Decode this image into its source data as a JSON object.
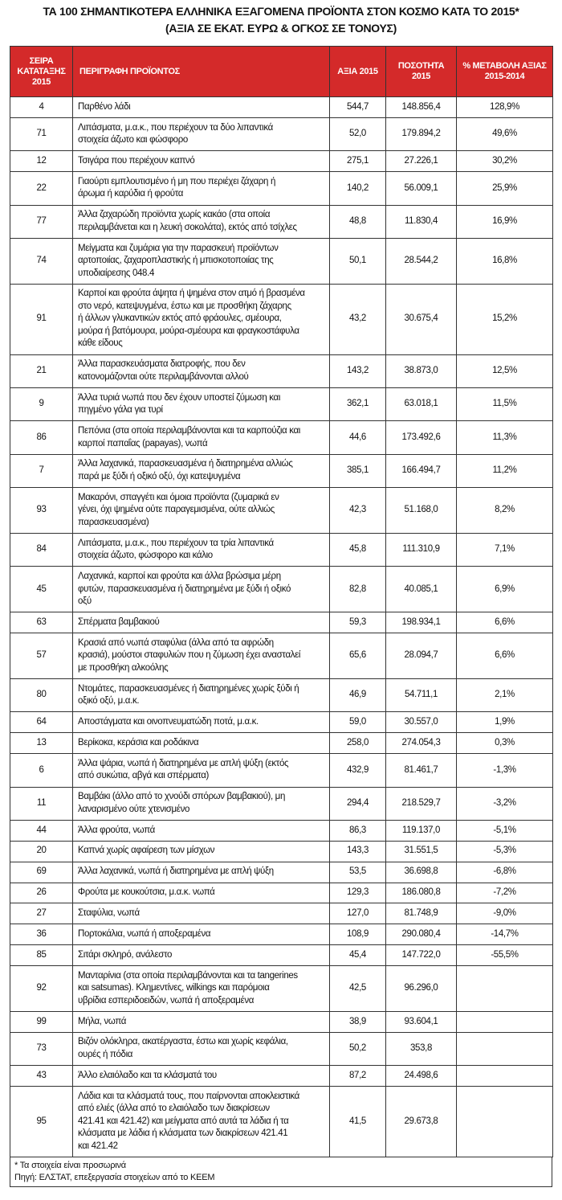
{
  "title": [
    "ΤΑ 100 ΣΗΜΑΝΤΙΚΟΤΕΡΑ ΕΛΛΗΝΙΚΑ ΕΞΑΓΟΜΕΝΑ ΠΡΟΪΟΝΤΑ ΣΤΟΝ ΚΟΣΜΟ ΚΑΤΑ ΤΟ 2015*",
    "(ΑΞΙΑ ΣΕ ΕΚΑΤ. ΕΥΡΩ & ΟΓΚΟΣ ΣΕ ΤΟΝΟΥΣ)"
  ],
  "table": {
    "header": [
      "ΣΕΙΡΑ ΚΑΤΑΤΑΞΗΣ 2015",
      "ΠΕΡΙΓΡΑΦΗ ΠΡΟΪΟΝΤΟΣ",
      "ΑΞΙΑ 2015",
      "ΠΟΣΟΤΗΤΑ 2015",
      "% ΜΕΤΑΒΟΛΗ ΑΞΙΑΣ 2015-2014"
    ],
    "rows": [
      {
        "rank": "4",
        "description": [
          "Παρθένο λάδι"
        ],
        "value": "544,7",
        "quantity": "148.856,4",
        "change": "128,9%"
      },
      {
        "rank": "71",
        "description": [
          "Λιπάσματα, μ.α.κ., που περιέχουν τα δύο λιπαντικά",
          "στοιχεία άζωτο και φώσφορο"
        ],
        "value": "52,0",
        "quantity": "179.894,2",
        "change": "49,6%"
      },
      {
        "rank": "12",
        "description": [
          "Τσιγάρα που περιέχουν καπνό"
        ],
        "value": "275,1",
        "quantity": "27.226,1",
        "change": "30,2%"
      },
      {
        "rank": "22",
        "description": [
          "Γιαούρτι εμπλουτισμένο ή μη που περιέχει ζάχαρη ή",
          "άρωμα ή καρύδια ή φρούτα"
        ],
        "value": "140,2",
        "quantity": "56.009,1",
        "change": "25,9%"
      },
      {
        "rank": "77",
        "description": [
          "Άλλα ζαχαρώδη προϊόντα χωρίς κακάο (στα οποία",
          "περιλαμβάνεται και η λευκή σοκολάτα), εκτός από τσίχλες"
        ],
        "value": "48,8",
        "quantity": "11.830,4",
        "change": "16,9%"
      },
      {
        "rank": "74",
        "description": [
          "Μείγματα και ζυμάρια για την παρασκευή προϊόντων",
          "αρτοποιίας, ζαχαροπλαστικής ή μπισκοτοποιίας της",
          "υποδιαίρεσης 048.4"
        ],
        "value": "50,1",
        "quantity": "28.544,2",
        "change": "16,8%"
      },
      {
        "rank": "91",
        "description": [
          "Καρποί και φρούτα άψητα ή ψημένα στον ατμό ή βρασμένα",
          "στο νερό, κατεψυγμένα, έστω και με προσθήκη ζάχαρης",
          "ή άλλων γλυκαντικών εκτός από φράουλες, σμέουρα,",
          "μούρα ή βατόμουρα, μούρα-σμέουρα και φραγκοστάφυλα",
          "κάθε είδους"
        ],
        "value": "43,2",
        "quantity": "30.675,4",
        "change": "15,2%"
      },
      {
        "rank": "21",
        "description": [
          "Άλλα παρασκευάσματα διατροφής, που δεν",
          "κατονομάζονται ούτε περιλαμβάνονται αλλού"
        ],
        "value": "143,2",
        "quantity": "38.873,0",
        "change": "12,5%"
      },
      {
        "rank": "9",
        "description": [
          "Άλλα τυριά νωπά που δεν έχουν υποστεί ζύμωση και",
          "πηγμένο γάλα για τυρί"
        ],
        "value": "362,1",
        "quantity": "63.018,1",
        "change": "11,5%"
      },
      {
        "rank": "86",
        "description": [
          "Πεπόνια (στα οποία περιλαμβάνονται και τα καρπούζια και",
          "καρποί παπαΐας (papayas), νωπά"
        ],
        "value": "44,6",
        "quantity": "173.492,6",
        "change": "11,3%"
      },
      {
        "rank": "7",
        "description": [
          "Άλλα λαχανικά, παρασκευασμένα ή διατηρημένα αλλιώς",
          "παρά με ξύδι ή οξικό οξύ, όχι κατεψυγμένα"
        ],
        "value": "385,1",
        "quantity": "166.494,7",
        "change": "11,2%"
      },
      {
        "rank": "93",
        "description": [
          "Μακαρόνι, σπαγγέτι και όμοια προϊόντα (ζυμαρικά εν",
          "γένει, όχι ψημένα ούτε παραγεμισμένα, ούτε αλλιώς",
          "παρασκευασμένα)"
        ],
        "value": "42,3",
        "quantity": "51.168,0",
        "change": "8,2%"
      },
      {
        "rank": "84",
        "description": [
          "Λιπάσματα, μ.α.κ., που περιέχουν τα τρία λιπαντικά",
          "στοιχεία άζωτο, φώσφορο και κάλιο"
        ],
        "value": "45,8",
        "quantity": "111.310,9",
        "change": "7,1%"
      },
      {
        "rank": "45",
        "description": [
          "Λαχανικά, καρποί και φρούτα και άλλα βρώσιμα μέρη",
          "φυτών, παρασκευασμένα ή διατηρημένα με ξύδι ή οξικό",
          "οξύ"
        ],
        "value": "82,8",
        "quantity": "40.085,1",
        "change": "6,9%"
      },
      {
        "rank": "63",
        "description": [
          "Σπέρματα βαμβακιού"
        ],
        "value": "59,3",
        "quantity": "198.934,1",
        "change": "6,6%"
      },
      {
        "rank": "57",
        "description": [
          "Κρασιά από νωπά σταφύλια (άλλα από τα αφρώδη",
          "κρασιά), μούστοι σταφυλιών που η ζύμωση έχει ανασταλεί",
          "με προσθήκη αλκοόλης"
        ],
        "value": "65,6",
        "quantity": "28.094,7",
        "change": "6,6%"
      },
      {
        "rank": "80",
        "description": [
          "Ντομάτες, παρασκευασμένες ή διατηρημένες χωρίς ξύδι ή",
          "οξικό οξύ, μ.α.κ."
        ],
        "value": "46,9",
        "quantity": "54.711,1",
        "change": "2,1%"
      },
      {
        "rank": "64",
        "description": [
          "Αποστάγματα και οινοπνευματώδη ποτά, μ.α.κ."
        ],
        "value": "59,0",
        "quantity": "30.557,0",
        "change": "1,9%"
      },
      {
        "rank": "13",
        "description": [
          "Βερίκοκα, κεράσια και ροδάκινα"
        ],
        "value": "258,0",
        "quantity": "274.054,3",
        "change": "0,3%"
      },
      {
        "rank": "6",
        "description": [
          "Άλλα ψάρια, νωπά ή διατηρημένα με απλή ψύξη (εκτός",
          "από συκώτια, αβγά και σπέρματα)"
        ],
        "value": "432,9",
        "quantity": "81.461,7",
        "change": "-1,3%"
      },
      {
        "rank": "11",
        "description": [
          "Βαμβάκι (άλλο από το χνούδι σπόρων βαμβακιού), μη",
          "λαναρισμένο ούτε χτενισμένο"
        ],
        "value": "294,4",
        "quantity": "218.529,7",
        "change": "-3,2%"
      },
      {
        "rank": "44",
        "description": [
          "Άλλα φρούτα, νωπά"
        ],
        "value": "86,3",
        "quantity": "119.137,0",
        "change": "-5,1%"
      },
      {
        "rank": "20",
        "description": [
          "Καπνά χωρίς αφαίρεση των μίσχων"
        ],
        "value": "143,3",
        "quantity": "31.551,5",
        "change": "-5,3%"
      },
      {
        "rank": "69",
        "description": [
          "Άλλα λαχανικά, νωπά ή διατηρημένα με απλή ψύξη"
        ],
        "value": "53,5",
        "quantity": "36.698,8",
        "change": "-6,8%"
      },
      {
        "rank": "26",
        "description": [
          "Φρούτα με κουκούτσια, μ.α.κ. νωπά"
        ],
        "value": "129,3",
        "quantity": "186.080,8",
        "change": "-7,2%"
      },
      {
        "rank": "27",
        "description": [
          "Σταφύλια, νωπά"
        ],
        "value": "127,0",
        "quantity": "81.748,9",
        "change": "-9,0%"
      },
      {
        "rank": "36",
        "description": [
          "Πορτοκάλια, νωπά ή αποξεραμένα"
        ],
        "value": "108,9",
        "quantity": "290.080,4",
        "change": "-14,7%"
      },
      {
        "rank": "85",
        "description": [
          "Σιτάρι σκληρό, ανάλεστο"
        ],
        "value": "45,4",
        "quantity": "147.722,0",
        "change": "-55,5%"
      },
      {
        "rank": "92",
        "description": [
          "Μανταρίνια (στα οποία περιλαμβάνονται και τα tangerines",
          "και satsumas). Κλημεντίνες, wilkings και παρόμοια",
          "υβρίδια εσπεριδοειδών, νωπά ή αποξεραμένα"
        ],
        "value": "42,5",
        "quantity": "96.296,0"
      },
      {
        "rank": "99",
        "description": [
          "Μήλα, νωπά"
        ],
        "value": "38,9",
        "quantity": "93.604,1"
      },
      {
        "rank": "73",
        "description": [
          "Βιζόν ολόκληρα, ακατέργαστα, έστω και χωρίς κεφάλια,",
          "ουρές ή πόδια"
        ],
        "value": "50,2",
        "quantity": "353,8"
      },
      {
        "rank": "43",
        "description": [
          "Άλλο ελαιόλαδο και τα κλάσματά του"
        ],
        "value": "87,2",
        "quantity": "24.498,6"
      },
      {
        "rank": "95",
        "description": [
          "Λάδια και τα κλάσματά τους, που παίρνονται αποκλειστικά",
          "από ελιές (άλλα από το ελαιόλαδο των διακρίσεων",
          "421.41 και 421.42) και μείγματα από αυτά τα λάδια ή τα",
          "κλάσματα με λάδια ή κλάσματα των διακρίσεων 421.41",
          "και 421.42"
        ],
        "value": "41,5",
        "quantity": "29.673,8"
      }
    ]
  },
  "footnotes": [
    "* Τα στοιχεία είναι προσωρινά",
    "Πηγή: ΕΛΣΤΑΤ, επεξεργασία στοιχείων από το ΚΕΕΜ"
  ]
}
